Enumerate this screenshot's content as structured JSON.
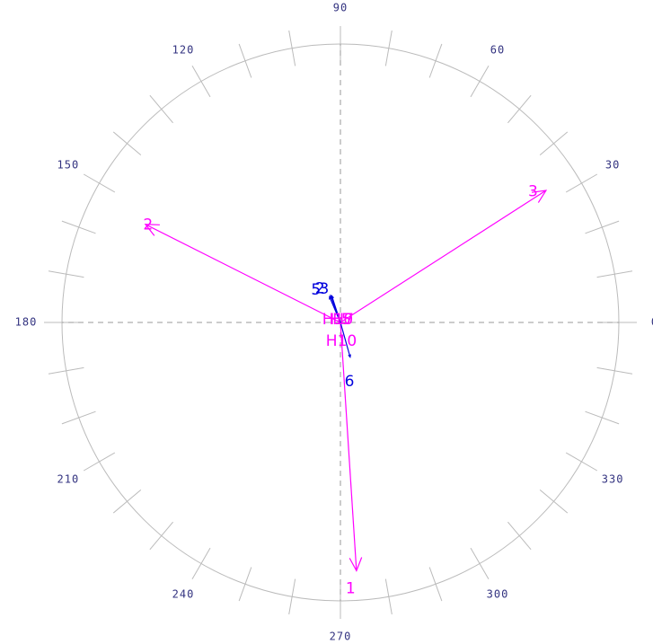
{
  "chart_data": {
    "type": "phasor",
    "rlim": [
      0,
      310
    ],
    "thetaticks": [
      0,
      30,
      60,
      90,
      120,
      150,
      180,
      210,
      240,
      270,
      300,
      330
    ],
    "grid": true,
    "series": [
      {
        "color": "#ff00ff",
        "phasors": [
          {
            "label": "1",
            "magnitude": 277,
            "angle": 273.7
          },
          {
            "label": "2",
            "magnitude": 243,
            "angle": 153.3
          },
          {
            "label": "3",
            "magnitude": 272,
            "angle": 32.7
          }
        ]
      },
      {
        "color": "#0000dd",
        "phasors": [
          {
            "label": "5",
            "magnitude": 31,
            "angle": 113
          },
          {
            "label": "2",
            "magnitude": 32,
            "angle": 110
          },
          {
            "label": "3",
            "magnitude": 31,
            "angle": 108
          },
          {
            "label": "6",
            "magnitude": 40,
            "angle": 285.7
          }
        ]
      }
    ],
    "annotations": [
      "H10",
      "H5",
      "H7",
      "H10"
    ]
  }
}
